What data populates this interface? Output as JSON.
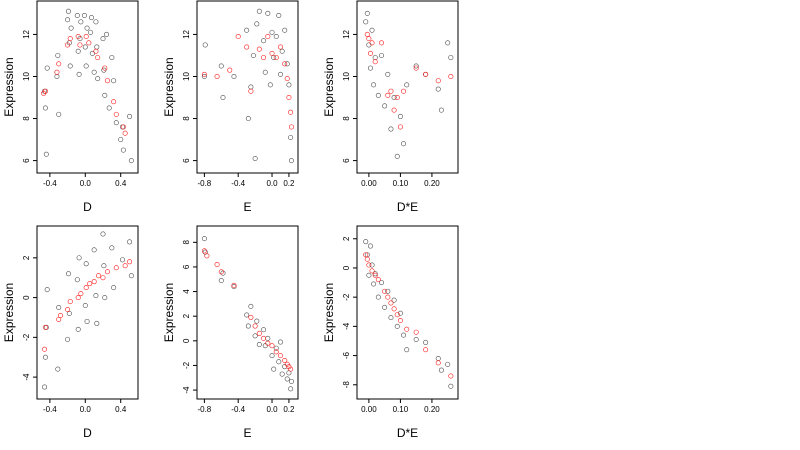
{
  "chart_data": [
    {
      "type": "scatter",
      "xlabel": "D",
      "ylabel": "Expression",
      "xlim": [
        -0.5,
        0.55
      ],
      "ylim": [
        5.6,
        13.4
      ],
      "xticks": [
        -0.4,
        0.0,
        0.4
      ],
      "xtick_labels": [
        "-0.4",
        "0.0",
        "0.4"
      ],
      "yticks": [
        6,
        8,
        10,
        12
      ],
      "ytick_labels": [
        "6",
        "8",
        "10",
        "12"
      ],
      "series": [
        {
          "color": "#000000",
          "x": [
            -0.46,
            -0.45,
            -0.44,
            -0.43,
            -0.32,
            -0.31,
            -0.3,
            -0.2,
            -0.19,
            -0.18,
            -0.17,
            -0.16,
            -0.09,
            -0.08,
            -0.07,
            -0.06,
            -0.05,
            -0.01,
            0.0,
            0.01,
            0.02,
            0.06,
            0.07,
            0.08,
            0.1,
            0.12,
            0.13,
            0.14,
            0.2,
            0.21,
            0.22,
            0.24,
            0.27,
            0.3,
            0.32,
            0.35,
            0.4,
            0.42,
            0.43,
            0.5,
            0.52
          ],
          "y": [
            9.3,
            8.5,
            6.3,
            10.4,
            10.0,
            11.0,
            8.2,
            12.7,
            13.1,
            11.6,
            10.5,
            12.3,
            12.9,
            11.2,
            10.1,
            11.8,
            12.6,
            12.9,
            11.4,
            10.5,
            12.3,
            12.1,
            12.8,
            11.1,
            10.2,
            12.6,
            11.4,
            9.9,
            11.8,
            10.3,
            9.1,
            12.0,
            8.5,
            10.9,
            9.8,
            7.8,
            7.0,
            7.6,
            6.5,
            8.1,
            6.0
          ]
        },
        {
          "color": "#ff0000",
          "x": [
            -0.47,
            -0.45,
            -0.32,
            -0.3,
            -0.2,
            -0.17,
            -0.08,
            -0.06,
            0.01,
            0.04,
            0.12,
            0.14,
            0.22,
            0.25,
            0.32,
            0.35,
            0.43,
            0.45
          ],
          "y": [
            9.2,
            9.3,
            10.2,
            10.6,
            11.5,
            11.8,
            11.9,
            11.5,
            11.9,
            11.6,
            11.2,
            10.9,
            10.4,
            9.8,
            8.8,
            8.2,
            7.6,
            7.3
          ]
        }
      ]
    },
    {
      "type": "scatter",
      "xlabel": "E",
      "ylabel": "Expression",
      "xlim": [
        -0.84,
        0.26
      ],
      "ylim": [
        5.6,
        13.4
      ],
      "xticks": [
        -0.8,
        -0.4,
        0.0,
        0.2
      ],
      "xtick_labels": [
        "-0.8",
        "-0.4",
        "0.0",
        "0.2"
      ],
      "yticks": [
        6,
        8,
        10,
        12
      ],
      "ytick_labels": [
        "6",
        "8",
        "10",
        "12"
      ],
      "series": [
        {
          "color": "#000000",
          "x": [
            -0.8,
            -0.79,
            -0.6,
            -0.58,
            -0.45,
            -0.3,
            -0.28,
            -0.25,
            -0.22,
            -0.2,
            -0.18,
            -0.15,
            -0.1,
            -0.08,
            -0.05,
            -0.02,
            0.0,
            0.02,
            0.05,
            0.08,
            0.1,
            0.12,
            0.15,
            0.18,
            0.2,
            0.22,
            0.23
          ],
          "y": [
            10.0,
            11.5,
            10.5,
            9.0,
            10.0,
            12.2,
            8.0,
            9.5,
            11.0,
            6.1,
            12.5,
            13.1,
            11.7,
            10.2,
            13.0,
            9.6,
            12.1,
            10.9,
            11.9,
            12.9,
            10.1,
            11.2,
            12.2,
            10.6,
            9.6,
            7.1,
            6.0
          ]
        },
        {
          "color": "#ff0000",
          "x": [
            -0.8,
            -0.65,
            -0.5,
            -0.4,
            -0.3,
            -0.25,
            -0.15,
            -0.1,
            -0.05,
            0.0,
            0.05,
            0.1,
            0.15,
            0.18,
            0.2,
            0.22,
            0.23
          ],
          "y": [
            10.1,
            10.0,
            10.3,
            11.9,
            11.4,
            9.3,
            11.3,
            10.9,
            11.9,
            11.1,
            10.9,
            11.4,
            10.6,
            9.9,
            9.0,
            8.3,
            7.6
          ]
        }
      ]
    },
    {
      "type": "scatter",
      "xlabel": "D*E",
      "ylabel": "Expression",
      "xlim": [
        -0.025,
        0.27
      ],
      "ylim": [
        5.6,
        13.4
      ],
      "xticks": [
        0.0,
        0.1,
        0.2
      ],
      "xtick_labels": [
        "0.00",
        "0.10",
        "0.20"
      ],
      "yticks": [
        6,
        8,
        10,
        12
      ],
      "ytick_labels": [
        "6",
        "8",
        "10",
        "12"
      ],
      "series": [
        {
          "color": "#000000",
          "x": [
            -0.01,
            -0.005,
            0.0,
            0.005,
            0.01,
            0.015,
            0.02,
            0.03,
            0.04,
            0.05,
            0.06,
            0.07,
            0.08,
            0.09,
            0.1,
            0.11,
            0.12,
            0.15,
            0.18,
            0.22,
            0.23,
            0.25,
            0.26
          ],
          "y": [
            12.6,
            13.0,
            11.5,
            10.4,
            12.2,
            9.6,
            10.9,
            9.1,
            11.0,
            8.6,
            10.1,
            7.5,
            9.0,
            6.2,
            8.1,
            6.8,
            9.6,
            10.5,
            10.1,
            9.4,
            8.4,
            11.6,
            10.9
          ]
        },
        {
          "color": "#ff0000",
          "x": [
            -0.005,
            0.0,
            0.005,
            0.01,
            0.02,
            0.04,
            0.06,
            0.07,
            0.08,
            0.09,
            0.1,
            0.11,
            0.15,
            0.18,
            0.22,
            0.26
          ],
          "y": [
            12.0,
            11.8,
            11.1,
            11.6,
            10.7,
            11.6,
            9.1,
            9.3,
            8.4,
            9.0,
            7.6,
            9.3,
            10.4,
            10.1,
            9.8,
            10.0
          ]
        }
      ]
    },
    {
      "type": "scatter",
      "xlabel": "D",
      "ylabel": "Expression",
      "xlim": [
        -0.5,
        0.55
      ],
      "ylim": [
        -4.9,
        3.4
      ],
      "xticks": [
        -0.4,
        0.0,
        0.4
      ],
      "xtick_labels": [
        "-0.4",
        "0.0",
        "0.4"
      ],
      "yticks": [
        -4,
        -2,
        0,
        2
      ],
      "ytick_labels": [
        "-4",
        "-2",
        "0",
        "2"
      ],
      "series": [
        {
          "color": "#000000",
          "x": [
            -0.46,
            -0.45,
            -0.44,
            -0.43,
            -0.31,
            -0.3,
            -0.2,
            -0.19,
            -0.18,
            -0.09,
            -0.08,
            -0.07,
            0.0,
            0.01,
            0.02,
            0.1,
            0.12,
            0.13,
            0.2,
            0.21,
            0.22,
            0.3,
            0.32,
            0.42,
            0.5,
            0.52
          ],
          "y": [
            -4.5,
            -3.0,
            -1.5,
            0.4,
            -3.6,
            -0.5,
            -2.1,
            1.2,
            -0.8,
            0.9,
            -1.6,
            2.0,
            -0.4,
            1.7,
            -1.2,
            2.4,
            0.1,
            -1.3,
            3.2,
            1.6,
            0.0,
            2.5,
            0.5,
            1.9,
            2.8,
            1.1
          ]
        },
        {
          "color": "#ff0000",
          "x": [
            -0.46,
            -0.45,
            -0.3,
            -0.28,
            -0.2,
            -0.17,
            -0.08,
            -0.05,
            0.01,
            0.05,
            0.1,
            0.15,
            0.2,
            0.25,
            0.35,
            0.45,
            0.5
          ],
          "y": [
            -2.6,
            -1.5,
            -1.1,
            -0.9,
            -0.6,
            -0.2,
            0.0,
            0.2,
            0.5,
            0.7,
            0.8,
            1.1,
            1.0,
            1.3,
            1.5,
            1.6,
            1.8
          ]
        }
      ]
    },
    {
      "type": "scatter",
      "xlabel": "E",
      "ylabel": "Expression",
      "xlim": [
        -0.84,
        0.26
      ],
      "ylim": [
        -4.4,
        9.0
      ],
      "xticks": [
        -0.8,
        -0.4,
        0.0,
        0.2
      ],
      "xtick_labels": [
        "-0.8",
        "-0.4",
        "0.0",
        "0.2"
      ],
      "yticks": [
        -4,
        -2,
        0,
        2,
        4,
        6,
        8
      ],
      "ytick_labels": [
        "-4",
        "-2",
        "0",
        "2",
        "4",
        "6",
        "8"
      ],
      "series": [
        {
          "color": "#000000",
          "x": [
            -0.8,
            -0.79,
            -0.6,
            -0.58,
            -0.45,
            -0.3,
            -0.28,
            -0.25,
            -0.2,
            -0.18,
            -0.15,
            -0.1,
            -0.08,
            -0.05,
            0.0,
            0.02,
            0.05,
            0.08,
            0.1,
            0.12,
            0.15,
            0.18,
            0.2,
            0.22,
            0.23
          ],
          "y": [
            8.3,
            7.2,
            4.9,
            5.5,
            4.4,
            2.1,
            1.2,
            2.8,
            0.4,
            1.6,
            -0.3,
            0.9,
            -0.4,
            0.2,
            -1.2,
            -2.3,
            -0.6,
            -1.7,
            -0.1,
            -2.7,
            -2.1,
            -3.1,
            -2.6,
            -3.9,
            -3.3
          ]
        },
        {
          "color": "#ff0000",
          "x": [
            -0.8,
            -0.77,
            -0.65,
            -0.6,
            -0.45,
            -0.25,
            -0.2,
            -0.15,
            -0.1,
            -0.05,
            0.0,
            0.05,
            0.1,
            0.15,
            0.18,
            0.2,
            0.22
          ],
          "y": [
            7.3,
            6.9,
            6.2,
            5.6,
            4.5,
            1.9,
            1.2,
            0.6,
            0.2,
            -0.2,
            -0.4,
            -0.9,
            -1.2,
            -1.6,
            -1.9,
            -2.1,
            -2.3
          ]
        }
      ]
    },
    {
      "type": "scatter",
      "xlabel": "D*E",
      "ylabel": "Expression",
      "xlim": [
        -0.025,
        0.27
      ],
      "ylim": [
        -8.7,
        2.6
      ],
      "xticks": [
        0.0,
        0.1,
        0.2
      ],
      "xtick_labels": [
        "0.00",
        "0.10",
        "0.20"
      ],
      "yticks": [
        -8,
        -6,
        -4,
        -2,
        0,
        2
      ],
      "ytick_labels": [
        "-8",
        "-6",
        "-4",
        "-2",
        "0",
        "2"
      ],
      "series": [
        {
          "color": "#000000",
          "x": [
            -0.01,
            -0.005,
            0.0,
            0.005,
            0.01,
            0.015,
            0.02,
            0.03,
            0.04,
            0.05,
            0.06,
            0.07,
            0.08,
            0.09,
            0.1,
            0.11,
            0.12,
            0.15,
            0.18,
            0.22,
            0.23,
            0.25,
            0.26
          ],
          "y": [
            1.8,
            0.9,
            -0.5,
            1.5,
            0.2,
            -1.1,
            -0.4,
            -2.0,
            -1.0,
            -2.7,
            -1.6,
            -3.4,
            -2.2,
            -4.0,
            -3.1,
            -4.6,
            -5.6,
            -4.9,
            -5.1,
            -6.2,
            -7.0,
            -6.6,
            -8.1
          ]
        },
        {
          "color": "#ff0000",
          "x": [
            -0.01,
            -0.005,
            0.0,
            0.01,
            0.02,
            0.03,
            0.05,
            0.06,
            0.07,
            0.08,
            0.09,
            0.1,
            0.12,
            0.15,
            0.18,
            0.22,
            0.26
          ],
          "y": [
            0.9,
            0.6,
            0.2,
            -0.2,
            -0.5,
            -0.8,
            -1.6,
            -2.0,
            -2.4,
            -2.8,
            -3.2,
            -3.6,
            -4.2,
            -4.4,
            -5.6,
            -6.5,
            -7.4
          ]
        }
      ]
    }
  ]
}
